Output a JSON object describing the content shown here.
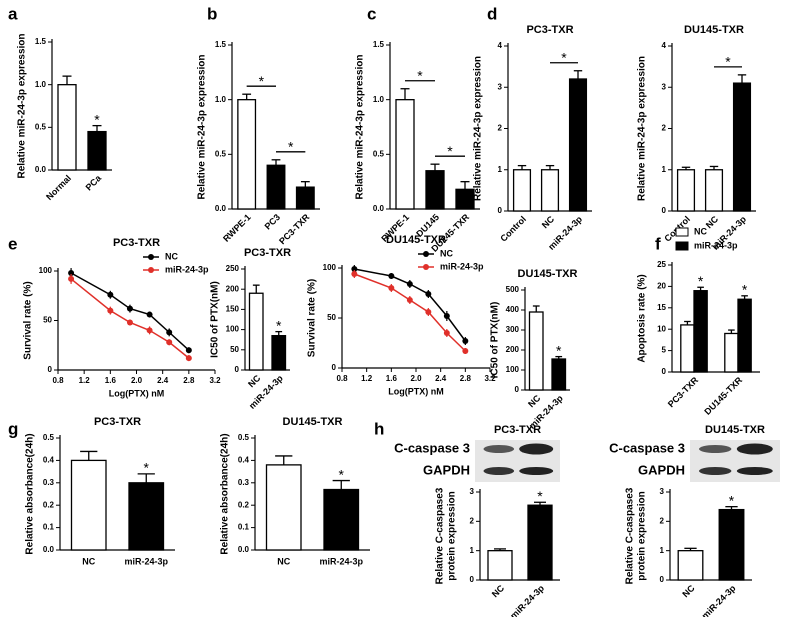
{
  "chart_data": [
    {
      "type": "bar",
      "panel": "a",
      "ylabel": "Relative miR-24-3p expression",
      "categories": [
        "Normal",
        "PCa"
      ],
      "series": [
        {
          "colors": [
            "#ffffff",
            "#000000"
          ],
          "values": [
            1.0,
            0.45
          ],
          "errors": [
            0.1,
            0.07
          ]
        }
      ],
      "ylim": [
        0,
        1.5
      ],
      "yticks": [
        {
          "value": 0,
          "label": "0.0"
        },
        0.5,
        {
          "value": 1,
          "label": "1.0"
        },
        1.5
      ],
      "significance": [
        {
          "label": "*",
          "index": 1
        }
      ],
      "x_label_rotation": -45
    },
    {
      "type": "bar",
      "panel": "b",
      "ylabel": "Relative miR-24-3p expression",
      "categories": [
        "RWPE-1",
        "PC3",
        "PC3-TXR"
      ],
      "series": [
        {
          "colors": [
            "#ffffff",
            "#000000",
            "#000000"
          ],
          "values": [
            1.0,
            0.4,
            0.2
          ],
          "errors": [
            0.05,
            0.05,
            0.05
          ]
        }
      ],
      "ylim": [
        0,
        1.5
      ],
      "yticks": [
        {
          "value": 0,
          "label": "0.0"
        },
        0.5,
        {
          "value": 1,
          "label": "1.0"
        },
        1.5
      ],
      "significance": [
        {
          "label": "*",
          "from": 0,
          "to": 1
        },
        {
          "label": "*",
          "from": 1,
          "to": 2
        }
      ],
      "x_label_rotation": -45
    },
    {
      "type": "bar",
      "panel": "c",
      "ylabel": "Relative miR-24-3p expression",
      "categories": [
        "RWPE-1",
        "DU145",
        "DU145-TXR"
      ],
      "series": [
        {
          "colors": [
            "#ffffff",
            "#000000",
            "#000000"
          ],
          "values": [
            1.0,
            0.35,
            0.18
          ],
          "errors": [
            0.1,
            0.06,
            0.07
          ]
        }
      ],
      "ylim": [
        0,
        1.5
      ],
      "yticks": [
        {
          "value": 0,
          "label": "0.0"
        },
        0.5,
        {
          "value": 1,
          "label": "1.0"
        },
        1.5
      ],
      "significance": [
        {
          "label": "*",
          "from": 0,
          "to": 1
        },
        {
          "label": "*",
          "from": 1,
          "to": 2
        }
      ],
      "x_label_rotation": -45
    },
    {
      "type": "bar",
      "panel": "d",
      "title": "PC3-TXR",
      "ylabel": "Relative miR-24-3p expression",
      "categories": [
        "Control",
        "NC",
        "miR-24-3p"
      ],
      "series": [
        {
          "colors": [
            "#ffffff",
            "#ffffff",
            "#000000"
          ],
          "values": [
            1.0,
            1.0,
            3.2
          ],
          "errors": [
            0.1,
            0.1,
            0.2
          ]
        }
      ],
      "ylim": [
        0,
        4
      ],
      "yticks": [
        0,
        1,
        2,
        3,
        4
      ],
      "significance": [
        {
          "label": "*",
          "from": 1,
          "to": 2
        }
      ],
      "x_label_rotation": -45
    },
    {
      "type": "bar",
      "title": "DU145-TXR",
      "ylabel": "Relative miR-24-3p expression",
      "categories": [
        "Control",
        "NC",
        "miR-24-3p"
      ],
      "series": [
        {
          "colors": [
            "#ffffff",
            "#ffffff",
            "#000000"
          ],
          "values": [
            1.0,
            1.0,
            3.1
          ],
          "errors": [
            0.06,
            0.08,
            0.2
          ]
        }
      ],
      "ylim": [
        0,
        4
      ],
      "yticks": [
        0,
        1,
        2,
        3,
        4
      ],
      "significance": [
        {
          "label": "*",
          "from": 1,
          "to": 2
        }
      ],
      "x_label_rotation": -45
    },
    {
      "type": "line",
      "panel": "e",
      "title": "PC3-TXR",
      "ylabel": "Survival rate (%)",
      "xlabel": "Log(PTX) nM",
      "series": [
        {
          "name": "NC",
          "color": "#000000",
          "x": [
            1.0,
            1.6,
            1.9,
            2.2,
            2.5,
            2.8
          ],
          "values": [
            98,
            76,
            62,
            56,
            38,
            20
          ],
          "errors": [
            5,
            4,
            4,
            3,
            4,
            3
          ]
        },
        {
          "name": "miR-24-3p",
          "color": "#e0302a",
          "x": [
            1.0,
            1.6,
            1.9,
            2.2,
            2.5,
            2.8
          ],
          "values": [
            92,
            60,
            48,
            40,
            28,
            12
          ],
          "errors": [
            5,
            4,
            3,
            4,
            3,
            3
          ]
        }
      ],
      "xlim": [
        0.8,
        3.2
      ],
      "xticks": [
        0.8,
        1.2,
        1.6,
        {
          "value": 2,
          "label": "2.0"
        },
        2.4,
        2.8,
        3.2
      ],
      "ylim": [
        0,
        100
      ],
      "yticks": [
        0,
        50,
        100
      ]
    },
    {
      "type": "bar",
      "title": "PC3-TXR",
      "ylabel": "IC50 of PTX(nM)",
      "categories": [
        "NC",
        "miR-24-3p"
      ],
      "series": [
        {
          "colors": [
            "#ffffff",
            "#000000"
          ],
          "values": [
            190,
            85
          ],
          "errors": [
            20,
            10
          ]
        }
      ],
      "ylim": [
        0,
        250
      ],
      "yticks": [
        0,
        50,
        100,
        150,
        200,
        250
      ],
      "significance": [
        {
          "label": "*",
          "index": 1
        }
      ],
      "x_label_rotation": -45
    },
    {
      "type": "line",
      "title": "DU145-TXR",
      "ylabel": "Survival rate (%)",
      "xlabel": "Log(PTX) nM",
      "series": [
        {
          "name": "NC",
          "color": "#000000",
          "x": [
            1.0,
            1.6,
            1.9,
            2.2,
            2.5,
            2.8
          ],
          "values": [
            99,
            92,
            84,
            74,
            52,
            27
          ],
          "errors": [
            4,
            3,
            4,
            4,
            5,
            4
          ]
        },
        {
          "name": "miR-24-3p",
          "color": "#e0302a",
          "x": [
            1.0,
            1.6,
            1.9,
            2.2,
            2.5,
            2.8
          ],
          "values": [
            94,
            80,
            68,
            56,
            35,
            17
          ],
          "errors": [
            4,
            4,
            4,
            4,
            4,
            3
          ]
        }
      ],
      "xlim": [
        0.8,
        3.2
      ],
      "xticks": [
        0.8,
        1.2,
        1.6,
        {
          "value": 2,
          "label": "2.0"
        },
        2.4,
        2.8,
        3.2
      ],
      "ylim": [
        0,
        100
      ],
      "yticks": [
        0,
        50,
        100
      ]
    },
    {
      "type": "bar",
      "title": "DU145-TXR",
      "ylabel": "IC50 of PTX(nM)",
      "categories": [
        "NC",
        "miR-24-3p"
      ],
      "series": [
        {
          "colors": [
            "#ffffff",
            "#000000"
          ],
          "values": [
            390,
            155
          ],
          "errors": [
            30,
            12
          ]
        }
      ],
      "ylim": [
        0,
        500
      ],
      "yticks": [
        0,
        100,
        200,
        300,
        400,
        500
      ],
      "significance": [
        {
          "label": "*",
          "index": 1
        }
      ],
      "x_label_rotation": -45
    },
    {
      "type": "bar",
      "panel": "f",
      "ylabel": "Apoptosis rate (%)",
      "categories": [
        "PC3-TXR",
        "DU145-TXR"
      ],
      "series": [
        {
          "name": "NC",
          "color": "#ffffff",
          "values": [
            11,
            9
          ],
          "errors": [
            0.8,
            0.8
          ]
        },
        {
          "name": "miR-24-3p",
          "color": "#000000",
          "values": [
            19,
            17
          ],
          "errors": [
            0.8,
            0.8
          ]
        }
      ],
      "ylim": [
        0,
        25
      ],
      "yticks": [
        0,
        5,
        10,
        15,
        20,
        25
      ],
      "significance": [
        {
          "label": "*",
          "series": 1,
          "index": 0
        },
        {
          "label": "*",
          "series": 1,
          "index": 1
        }
      ],
      "x_label_rotation": -45
    },
    {
      "type": "bar",
      "panel": "g",
      "title": "PC3-TXR",
      "ylabel": "Relative absorbance(24h)",
      "categories": [
        "NC",
        "miR-24-3p"
      ],
      "series": [
        {
          "colors": [
            "#ffffff",
            "#000000"
          ],
          "values": [
            0.4,
            0.3
          ],
          "errors": [
            0.04,
            0.04
          ]
        }
      ],
      "ylim": [
        0,
        0.5
      ],
      "yticks": [
        {
          "value": 0,
          "label": "0.0"
        },
        0.1,
        0.2,
        0.3,
        0.4,
        0.5
      ],
      "significance": [
        {
          "label": "*",
          "index": 1
        }
      ],
      "x_label_rotation": 0
    },
    {
      "type": "bar",
      "title": "DU145-TXR",
      "ylabel": "Relative absorbance(24h)",
      "categories": [
        "NC",
        "miR-24-3p"
      ],
      "series": [
        {
          "colors": [
            "#ffffff",
            "#000000"
          ],
          "values": [
            0.38,
            0.27
          ],
          "errors": [
            0.04,
            0.04
          ]
        }
      ],
      "ylim": [
        0,
        0.5
      ],
      "yticks": [
        {
          "value": 0,
          "label": "0.0"
        },
        0.1,
        0.2,
        0.3,
        0.4,
        0.5
      ],
      "significance": [
        {
          "label": "*",
          "index": 1
        }
      ],
      "x_label_rotation": 0
    },
    {
      "type": "bar",
      "panel": "h",
      "title": "PC3-TXR",
      "blot_labels": [
        "C-caspase 3",
        "GAPDH"
      ],
      "ylabel": [
        "Relative C-caspase3",
        "protein expression"
      ],
      "categories": [
        "NC",
        "miR-24-3p"
      ],
      "series": [
        {
          "colors": [
            "#ffffff",
            "#000000"
          ],
          "values": [
            1.0,
            2.55
          ],
          "errors": [
            0.06,
            0.1
          ]
        }
      ],
      "ylim": [
        0,
        3
      ],
      "yticks": [
        0,
        1,
        2,
        3
      ],
      "significance": [
        {
          "label": "*",
          "index": 1
        }
      ],
      "x_label_rotation": -45
    },
    {
      "type": "bar",
      "title": "DU145-TXR",
      "blot_labels": [
        "C-caspase 3",
        "GAPDH"
      ],
      "ylabel": [
        "Relative C-caspase3",
        "protein expression"
      ],
      "categories": [
        "NC",
        "miR-24-3p"
      ],
      "series": [
        {
          "colors": [
            "#ffffff",
            "#000000"
          ],
          "values": [
            1.0,
            2.4
          ],
          "errors": [
            0.08,
            0.1
          ]
        }
      ],
      "ylim": [
        0,
        3
      ],
      "yticks": [
        0,
        1,
        2,
        3
      ],
      "significance": [
        {
          "label": "*",
          "index": 1
        }
      ],
      "x_label_rotation": -45
    }
  ]
}
